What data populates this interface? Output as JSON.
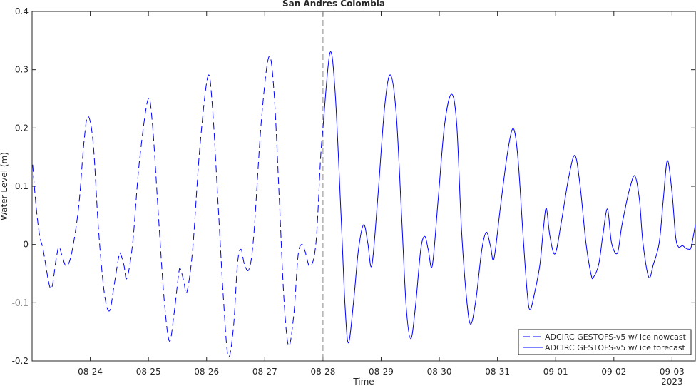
{
  "chart_data": {
    "type": "line",
    "title": "San Andres Colombia",
    "xlabel": "Time",
    "ylabel": "Water Level (m)",
    "x_year": "2023",
    "xlim": [
      235,
      246.4
    ],
    "ylim": [
      -0.2,
      0.4
    ],
    "xticks": [
      {
        "value": 236,
        "label": "08-24"
      },
      {
        "value": 237,
        "label": "08-25"
      },
      {
        "value": 238,
        "label": "08-26"
      },
      {
        "value": 239,
        "label": "08-27"
      },
      {
        "value": 240,
        "label": "08-28"
      },
      {
        "value": 241,
        "label": "08-29"
      },
      {
        "value": 242,
        "label": "08-30"
      },
      {
        "value": 243,
        "label": "08-31"
      },
      {
        "value": 244,
        "label": "09-01"
      },
      {
        "value": 245,
        "label": "09-02"
      },
      {
        "value": 246,
        "label": "09-03"
      }
    ],
    "yticks": [
      -0.2,
      -0.1,
      0,
      0.1,
      0.2,
      0.3,
      0.4
    ],
    "vline": 240,
    "legend": "lower right",
    "series": [
      {
        "name": "ADCIRC GESTOFS-v5 w/ ice nowcast",
        "color": "#0000ff",
        "dashed": true,
        "x": [
          235.01,
          235.07,
          235.13,
          235.19,
          235.32,
          235.41,
          235.46,
          235.52,
          235.59,
          235.68,
          235.8,
          235.89,
          235.96,
          236.05,
          236.14,
          236.24,
          236.33,
          236.41,
          236.49,
          236.52,
          236.58,
          236.63,
          236.73,
          236.84,
          236.99,
          237.07,
          237.17,
          237.27,
          237.36,
          237.44,
          237.52,
          237.55,
          237.61,
          237.66,
          237.76,
          237.88,
          238.02,
          238.1,
          238.2,
          238.29,
          238.37,
          238.46,
          238.53,
          238.59,
          238.65,
          238.73,
          238.81,
          238.94,
          239.07,
          239.16,
          239.25,
          239.33,
          239.41,
          239.5,
          239.57,
          239.63,
          239.69,
          239.78,
          239.88,
          239.96,
          240.0
        ],
        "values": [
          0.137,
          0.064,
          0.015,
          -0.009,
          -0.076,
          -0.027,
          -0.004,
          -0.021,
          -0.037,
          -0.015,
          0.064,
          0.174,
          0.22,
          0.174,
          0.028,
          -0.082,
          -0.114,
          -0.07,
          -0.021,
          -0.016,
          -0.036,
          -0.058,
          0.003,
          0.138,
          0.248,
          0.205,
          0.052,
          -0.094,
          -0.166,
          -0.119,
          -0.05,
          -0.042,
          -0.064,
          -0.082,
          -0.009,
          0.162,
          0.288,
          0.236,
          0.064,
          -0.094,
          -0.192,
          -0.144,
          -0.034,
          -0.008,
          -0.034,
          -0.042,
          0.015,
          0.211,
          0.322,
          0.26,
          0.077,
          -0.094,
          -0.174,
          -0.119,
          -0.021,
          0.0,
          -0.011,
          -0.038,
          0.003,
          0.15,
          0.2
        ]
      },
      {
        "name": "ADCIRC GESTOFS-v5 w/ ice forecast",
        "color": "#0000ff",
        "dashed": false,
        "x": [
          240.0,
          240.12,
          240.21,
          240.31,
          240.38,
          240.44,
          240.53,
          240.61,
          240.7,
          240.77,
          240.84,
          240.94,
          241.06,
          241.16,
          241.26,
          241.35,
          241.43,
          241.51,
          241.59,
          241.68,
          241.75,
          241.81,
          241.88,
          241.98,
          242.09,
          242.21,
          242.3,
          242.38,
          242.47,
          242.54,
          242.63,
          242.73,
          242.81,
          242.88,
          242.94,
          243.05,
          243.17,
          243.27,
          243.35,
          243.44,
          243.51,
          243.56,
          243.64,
          243.73,
          243.79,
          243.84,
          243.9,
          243.99,
          244.1,
          244.22,
          244.33,
          244.42,
          244.52,
          244.61,
          244.65,
          244.74,
          244.81,
          244.89,
          244.96,
          245.06,
          245.13,
          245.2,
          245.27,
          245.36,
          245.44,
          245.5,
          245.6,
          245.68,
          245.78,
          245.85,
          245.92,
          246.0,
          246.06,
          246.11,
          246.18,
          246.23,
          246.28,
          246.33,
          246.4
        ],
        "values": [
          0.2,
          0.329,
          0.26,
          0.052,
          -0.106,
          -0.169,
          -0.094,
          -0.009,
          0.034,
          0.003,
          -0.036,
          0.077,
          0.236,
          0.291,
          0.223,
          0.052,
          -0.106,
          -0.162,
          -0.106,
          -0.009,
          0.014,
          -0.009,
          -0.036,
          0.077,
          0.205,
          0.258,
          0.205,
          0.028,
          -0.094,
          -0.137,
          -0.094,
          -0.009,
          0.021,
          -0.003,
          -0.024,
          0.064,
          0.156,
          0.199,
          0.15,
          0.015,
          -0.082,
          -0.112,
          -0.082,
          -0.034,
          0.028,
          0.062,
          0.015,
          -0.016,
          0.04,
          0.113,
          0.153,
          0.101,
          0.003,
          -0.052,
          -0.056,
          -0.034,
          0.015,
          0.061,
          0.003,
          -0.015,
          0.028,
          0.064,
          0.095,
          0.118,
          0.077,
          0.003,
          -0.056,
          -0.034,
          0.003,
          0.077,
          0.144,
          0.089,
          0.015,
          -0.004,
          -0.002,
          -0.006,
          -0.008,
          -0.004,
          0.034
        ]
      }
    ]
  }
}
